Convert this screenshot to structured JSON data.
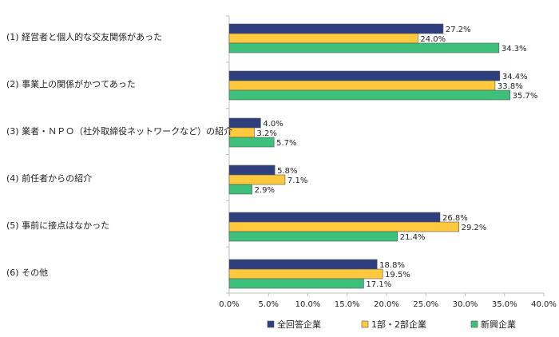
{
  "chart_data": {
    "type": "bar",
    "orientation": "horizontal",
    "categories": [
      "(1) 経営者と個人的な交友関係があった",
      "(2) 事業上の関係がかつてあった",
      "(3) 業者・ＮＰＯ（社外取締役ネットワークなど）の紹介",
      "(4) 前任者からの紹介",
      "(5) 事前に接点はなかった",
      "(6) その他"
    ],
    "series": [
      {
        "name": "全回答企業",
        "color": "#2E3F7F",
        "values": [
          27.2,
          34.4,
          4.0,
          5.8,
          26.8,
          18.8
        ],
        "labels": [
          "27.2%",
          "34.4%",
          "4.0%",
          "5.8%",
          "26.8%",
          "18.8%"
        ]
      },
      {
        "name": "1部・2部企業",
        "color": "#FFC83D",
        "values": [
          24.0,
          33.8,
          3.2,
          7.1,
          29.2,
          19.5
        ],
        "labels": [
          "24.0%",
          "33.8%",
          "3.2%",
          "7.1%",
          "29.2%",
          "19.5%"
        ]
      },
      {
        "name": "新興企業",
        "color": "#3CC07A",
        "values": [
          34.3,
          35.7,
          5.7,
          2.9,
          21.4,
          17.1
        ],
        "labels": [
          "34.3%",
          "35.7%",
          "5.7%",
          "2.9%",
          "21.4%",
          "17.1%"
        ]
      }
    ],
    "xlim": [
      0,
      40
    ],
    "xticks": [
      0,
      5,
      10,
      15,
      20,
      25,
      30,
      35,
      40
    ],
    "xtick_labels": [
      "0.0%",
      "5.0%",
      "10.0%",
      "15.0%",
      "20.0%",
      "25.0%",
      "30.0%",
      "35.0%",
      "40.0%"
    ],
    "grid": false,
    "legend_position": "bottom"
  }
}
